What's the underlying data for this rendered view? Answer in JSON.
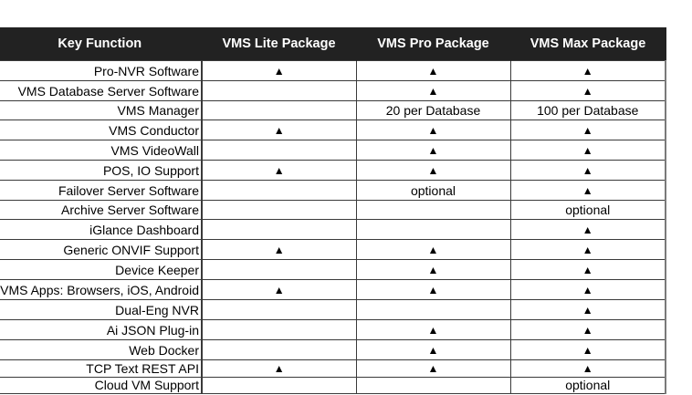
{
  "table": {
    "headers": [
      "Key Function",
      "VMS Lite Package",
      "VMS Pro Package",
      "VMS Max Package"
    ],
    "rows": [
      {
        "function": "Pro-NVR Software",
        "lite": "▲",
        "pro": "▲",
        "max": "▲"
      },
      {
        "function": "VMS Database Server Software",
        "lite": "",
        "pro": "▲",
        "max": "▲"
      },
      {
        "function": "VMS Manager",
        "lite": "",
        "pro": "20 per Database",
        "max": "100 per Database"
      },
      {
        "function": "VMS Conductor",
        "lite": "▲",
        "pro": "▲",
        "max": "▲"
      },
      {
        "function": "VMS VideoWall",
        "lite": "",
        "pro": "▲",
        "max": "▲"
      },
      {
        "function": "POS, IO Support",
        "lite": "▲",
        "pro": "▲",
        "max": "▲"
      },
      {
        "function": "Failover Server Software",
        "lite": "",
        "pro": "optional",
        "max": "▲"
      },
      {
        "function": "Archive Server Software",
        "lite": "",
        "pro": "",
        "max": "optional"
      },
      {
        "function": "iGlance Dashboard",
        "lite": "",
        "pro": "",
        "max": "▲"
      },
      {
        "function": "Generic ONVIF Support",
        "lite": "▲",
        "pro": "▲",
        "max": "▲"
      },
      {
        "function": "Device Keeper",
        "lite": "",
        "pro": "▲",
        "max": "▲"
      },
      {
        "function": "VMS Apps: Browsers, iOS, Android ",
        "lite": "▲",
        "pro": "▲",
        "max": "▲"
      },
      {
        "function": "Dual-Eng NVR",
        "lite": "",
        "pro": "",
        "max": "▲"
      },
      {
        "function": "Ai JSON Plug-in",
        "lite": "",
        "pro": "▲",
        "max": "▲"
      },
      {
        "function": "Web Docker",
        "lite": "",
        "pro": "▲",
        "max": "▲"
      },
      {
        "function": "TCP Text REST API",
        "lite": "▲",
        "pro": "▲",
        "max": "▲"
      },
      {
        "function": "Cloud VM Support",
        "lite": "",
        "pro": "",
        "max": "optional"
      }
    ]
  },
  "icons": {
    "included": "filled-up-triangle"
  },
  "colors": {
    "header_bg": "#222222",
    "header_text": "#ffffff",
    "grid": "#3a3a3a"
  }
}
